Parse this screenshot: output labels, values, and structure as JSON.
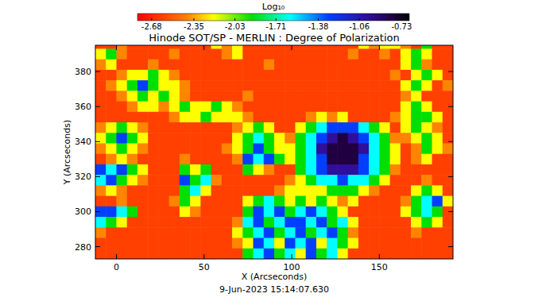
{
  "chart_data": {
    "type": "heatmap",
    "title": "Hinode SOT/SP - MERLIN : Degree of Polarization",
    "xlabel": "X (Arcseconds)",
    "ylabel": "Y (Arcseconds)",
    "annotation": "9-Jun-2023 15:14:07.630",
    "xlim": [
      -12,
      192
    ],
    "ylim": [
      273,
      395
    ],
    "xticks": [
      0,
      50,
      100,
      150
    ],
    "yticks": [
      280,
      300,
      320,
      340,
      360,
      380
    ],
    "colorbar": {
      "label": "Log₁₀",
      "range": [
        -2.79,
        -0.67
      ],
      "ticks": [
        -2.68,
        -2.35,
        -2.03,
        -1.71,
        -1.38,
        -1.06,
        -0.73
      ]
    },
    "x": [
      -9,
      -3,
      3,
      9,
      15,
      21,
      27,
      33,
      39,
      45,
      51,
      57,
      63,
      69,
      75,
      81,
      87,
      93,
      99,
      105,
      111,
      117,
      123,
      129,
      135,
      141,
      147,
      153,
      159,
      165,
      171,
      177,
      183,
      189
    ],
    "y": [
      396,
      390,
      384,
      378,
      372,
      366,
      360,
      354,
      348,
      342,
      336,
      330,
      324,
      318,
      312,
      306,
      300,
      294,
      288,
      282,
      276
    ],
    "values": [
      [
        -2.6,
        -2.6,
        -2.4,
        -2.6,
        -2.6,
        -2.6,
        -2.6,
        -2.6,
        -2.6,
        -2.6,
        -2.6,
        -2.2,
        -2.4,
        -2.2,
        -2.6,
        -2.6,
        -2.6,
        -2.6,
        -2.6,
        -2.6,
        -2.6,
        -2.6,
        -2.6,
        -2.6,
        -2.6,
        -2.2,
        -2.4,
        -2.2,
        -2.2,
        -2.4,
        -2.6,
        -1.9,
        -2.6,
        -2.6
      ],
      [
        -2.2,
        -1.9,
        -2.4,
        -2.6,
        -2.6,
        -2.6,
        -2.6,
        -2.4,
        -2.6,
        -2.6,
        -2.6,
        -2.6,
        -2.4,
        -2.2,
        -2.6,
        -2.6,
        -2.6,
        -2.6,
        -2.6,
        -2.6,
        -2.6,
        -2.6,
        -2.6,
        -2.6,
        -2.4,
        -2.6,
        -2.6,
        -2.4,
        -2.6,
        -2.2,
        -1.9,
        -2.2,
        -2.6,
        -2.6
      ],
      [
        -2.4,
        -2.2,
        -2.6,
        -2.6,
        -2.6,
        -2.4,
        -2.6,
        -2.6,
        -2.6,
        -2.6,
        -2.6,
        -2.6,
        -2.6,
        -2.6,
        -2.6,
        -2.6,
        -2.4,
        -2.6,
        -2.6,
        -2.6,
        -2.6,
        -2.6,
        -2.6,
        -2.6,
        -2.6,
        -2.6,
        -2.6,
        -2.6,
        -2.6,
        -2.2,
        -1.9,
        -2.4,
        -2.6,
        -2.6
      ],
      [
        -2.6,
        -2.6,
        -2.4,
        -2.2,
        -2.2,
        -1.9,
        -2.2,
        -2.4,
        -2.6,
        -2.6,
        -2.6,
        -2.6,
        -2.6,
        -2.6,
        -2.6,
        -2.6,
        -2.6,
        -2.6,
        -2.6,
        -2.6,
        -2.6,
        -2.6,
        -2.6,
        -2.6,
        -2.6,
        -2.6,
        -2.6,
        -2.6,
        -2.4,
        -2.6,
        -2.2,
        -1.9,
        -2.2,
        -2.6
      ],
      [
        -2.6,
        -2.4,
        -2.2,
        -1.9,
        -1.3,
        -1.9,
        -2.2,
        -2.2,
        -2.4,
        -2.6,
        -2.6,
        -2.6,
        -2.6,
        -2.6,
        -2.6,
        -2.6,
        -2.6,
        -2.6,
        -2.6,
        -2.6,
        -2.6,
        -2.6,
        -2.6,
        -2.6,
        -2.6,
        -2.6,
        -2.6,
        -2.6,
        -2.6,
        -2.2,
        -1.9,
        -2.2,
        -2.6,
        -2.4
      ],
      [
        -2.6,
        -2.6,
        -2.4,
        -2.2,
        -1.9,
        -2.2,
        -1.9,
        -2.2,
        -2.4,
        -2.6,
        -2.6,
        -2.6,
        -2.6,
        -2.6,
        -2.4,
        -2.6,
        -2.6,
        -2.6,
        -2.6,
        -2.6,
        -2.6,
        -2.6,
        -2.6,
        -2.6,
        -2.6,
        -2.6,
        -2.6,
        -2.6,
        -2.6,
        -2.4,
        -2.2,
        -2.6,
        -2.6,
        -2.6
      ],
      [
        -2.6,
        -2.6,
        -2.6,
        -2.4,
        -2.2,
        -2.2,
        -2.4,
        -2.2,
        -1.9,
        -2.2,
        -2.2,
        -1.9,
        -2.2,
        -2.4,
        -2.6,
        -2.6,
        -2.6,
        -2.6,
        -2.6,
        -2.6,
        -2.6,
        -2.6,
        -2.6,
        -2.6,
        -2.6,
        -2.6,
        -2.6,
        -2.6,
        -2.6,
        -2.2,
        -1.9,
        -2.2,
        -2.6,
        -2.6
      ],
      [
        -2.6,
        -2.6,
        -2.6,
        -2.6,
        -2.6,
        -2.6,
        -2.6,
        -2.4,
        -2.2,
        -2.2,
        -1.9,
        -2.2,
        -2.2,
        -2.2,
        -2.4,
        -2.6,
        -2.6,
        -2.6,
        -2.6,
        -2.6,
        -2.4,
        -2.2,
        -2.4,
        -2.2,
        -2.6,
        -2.6,
        -2.6,
        -2.6,
        -2.4,
        -2.2,
        -1.9,
        -1.9,
        -2.2,
        -2.6
      ],
      [
        -2.4,
        -2.2,
        -1.9,
        -2.2,
        -2.4,
        -2.6,
        -2.6,
        -2.6,
        -2.6,
        -2.6,
        -2.6,
        -2.6,
        -2.6,
        -2.4,
        -2.2,
        -1.9,
        -2.2,
        -2.6,
        -2.6,
        -2.2,
        -1.9,
        -1.6,
        -1.3,
        -1.3,
        -1.3,
        -1.6,
        -1.9,
        -2.2,
        -2.6,
        -2.2,
        -1.9,
        -2.2,
        -2.4,
        -2.6
      ],
      [
        -2.2,
        -1.9,
        -1.3,
        -1.9,
        -2.2,
        -2.6,
        -2.6,
        -2.6,
        -2.6,
        -2.6,
        -2.6,
        -2.6,
        -2.6,
        -2.2,
        -1.9,
        -1.6,
        -1.9,
        -2.2,
        -2.4,
        -1.9,
        -1.6,
        -1.3,
        -1.0,
        -0.8,
        -1.0,
        -1.3,
        -1.6,
        -1.9,
        -2.4,
        -2.4,
        -2.2,
        -1.9,
        -2.2,
        -2.6
      ],
      [
        -2.4,
        -2.2,
        -1.9,
        -2.2,
        -2.4,
        -2.6,
        -2.6,
        -2.6,
        -2.6,
        -2.6,
        -2.6,
        -2.6,
        -2.4,
        -2.2,
        -1.9,
        -1.3,
        -1.9,
        -2.2,
        -2.2,
        -1.9,
        -1.6,
        -1.0,
        -0.8,
        -0.8,
        -0.8,
        -1.0,
        -1.6,
        -1.9,
        -2.2,
        -2.6,
        -2.4,
        -1.9,
        -2.2,
        -2.4
      ],
      [
        -2.6,
        -2.4,
        -2.2,
        -2.4,
        -2.6,
        -2.6,
        -2.6,
        -2.6,
        -2.4,
        -2.6,
        -2.6,
        -2.6,
        -2.6,
        -2.4,
        -1.3,
        -1.6,
        -1.3,
        -1.9,
        -2.2,
        -1.9,
        -1.6,
        -1.3,
        -0.8,
        -0.8,
        -0.8,
        -1.3,
        -1.6,
        -1.9,
        -2.2,
        -2.6,
        -2.4,
        -2.2,
        -2.6,
        -2.6
      ],
      [
        -1.3,
        -1.6,
        -1.3,
        -1.9,
        -2.2,
        -2.6,
        -2.6,
        -2.6,
        -1.9,
        -2.2,
        -1.9,
        -2.6,
        -2.6,
        -2.6,
        -1.9,
        -2.2,
        -2.4,
        -2.6,
        -2.6,
        -1.9,
        -1.6,
        -1.3,
        -1.0,
        -1.0,
        -1.0,
        -1.3,
        -1.6,
        -1.9,
        -2.4,
        -2.6,
        -2.6,
        -2.6,
        -2.6,
        -2.6
      ],
      [
        -1.6,
        -1.3,
        -1.9,
        -2.2,
        -2.4,
        -2.6,
        -2.6,
        -2.6,
        -1.3,
        -1.9,
        -1.6,
        -2.4,
        -2.6,
        -2.6,
        -2.6,
        -2.6,
        -2.6,
        -2.6,
        -2.4,
        -2.2,
        -1.9,
        -1.6,
        -1.6,
        -1.3,
        -1.6,
        -1.6,
        -1.9,
        -2.2,
        -2.6,
        -2.6,
        -2.6,
        -2.4,
        -2.6,
        -2.6
      ],
      [
        -2.4,
        -2.2,
        -2.4,
        -2.6,
        -2.6,
        -2.6,
        -2.6,
        -2.6,
        -1.9,
        -1.6,
        -2.2,
        -2.6,
        -2.6,
        -2.6,
        -2.6,
        -2.6,
        -2.6,
        -2.4,
        -2.2,
        -2.2,
        -2.2,
        -2.2,
        -1.9,
        -1.9,
        -1.9,
        -2.2,
        -2.4,
        -2.6,
        -2.6,
        -2.6,
        -2.2,
        -1.9,
        -2.2,
        -2.6
      ],
      [
        -2.6,
        -2.6,
        -2.4,
        -2.6,
        -2.6,
        -2.6,
        -2.6,
        -2.4,
        -1.9,
        -2.2,
        -2.6,
        -2.6,
        -2.6,
        -2.6,
        -2.2,
        -1.9,
        -1.6,
        -1.9,
        -2.2,
        -1.9,
        -2.2,
        -1.9,
        -2.2,
        -2.4,
        -2.2,
        -2.6,
        -2.6,
        -2.6,
        -2.6,
        -2.4,
        -1.9,
        -1.6,
        -1.3,
        -2.2
      ],
      [
        -1.3,
        -1.3,
        -1.6,
        -1.9,
        -2.6,
        -2.6,
        -2.6,
        -2.6,
        -2.2,
        -2.4,
        -2.6,
        -2.6,
        -2.6,
        -2.6,
        -1.9,
        -1.3,
        -1.6,
        -1.3,
        -1.9,
        -1.6,
        -1.3,
        -1.6,
        -1.9,
        -2.2,
        -2.6,
        -2.6,
        -2.6,
        -2.6,
        -2.6,
        -2.2,
        -1.9,
        -1.6,
        -1.9,
        -2.6
      ],
      [
        -1.6,
        -1.9,
        -2.2,
        -2.6,
        -2.6,
        -2.6,
        -2.6,
        -2.6,
        -2.6,
        -2.6,
        -2.6,
        -2.6,
        -2.6,
        -2.4,
        -1.6,
        -1.3,
        -1.9,
        -1.6,
        -1.3,
        -1.3,
        -1.6,
        -1.3,
        -1.9,
        -1.6,
        -2.2,
        -2.6,
        -2.6,
        -2.6,
        -2.6,
        -2.6,
        -2.2,
        -1.9,
        -2.2,
        -2.6
      ],
      [
        -2.4,
        -2.6,
        -2.6,
        -2.6,
        -2.6,
        -2.6,
        -2.6,
        -2.6,
        -2.6,
        -2.6,
        -2.6,
        -2.6,
        -2.6,
        -2.2,
        -1.9,
        -1.6,
        -1.3,
        -1.9,
        -1.6,
        -1.3,
        -1.9,
        -1.6,
        -1.3,
        -1.9,
        -2.4,
        -2.6,
        -2.6,
        -2.6,
        -2.6,
        -2.6,
        -2.4,
        -2.6,
        -2.6,
        -2.6
      ],
      [
        -2.6,
        -2.6,
        -2.6,
        -2.6,
        -2.6,
        -2.6,
        -2.6,
        -2.6,
        -2.6,
        -2.6,
        -2.6,
        -2.6,
        -2.6,
        -2.4,
        -2.2,
        -1.3,
        -1.6,
        -2.2,
        -1.3,
        -1.6,
        -1.3,
        -2.2,
        -1.6,
        -1.9,
        -2.2,
        -2.6,
        -2.6,
        -2.6,
        -2.6,
        -2.6,
        -2.6,
        -2.6,
        -2.6,
        -2.6
      ],
      [
        -2.6,
        -2.6,
        -2.6,
        -2.6,
        -2.6,
        -2.6,
        -2.6,
        -2.6,
        -2.6,
        -2.6,
        -2.6,
        -2.6,
        -2.6,
        -2.6,
        -1.9,
        -1.6,
        -1.3,
        -1.9,
        -1.6,
        -2.2,
        -1.3,
        -1.9,
        -1.6,
        -2.2,
        -2.6,
        -2.6,
        -2.6,
        -2.6,
        -2.6,
        -2.6,
        -2.6,
        -2.6,
        -2.6,
        -2.6
      ]
    ]
  }
}
